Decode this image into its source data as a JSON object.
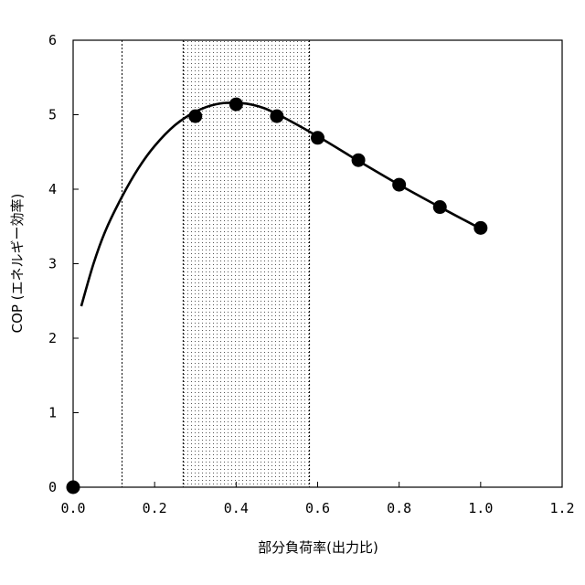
{
  "chart_data": {
    "type": "scatter",
    "title": "",
    "xlabel": "部分負荷率(出力比)",
    "ylabel": "COP (エネルギー効率)",
    "xlim": [
      0.0,
      1.2
    ],
    "ylim": [
      0,
      6
    ],
    "xticks": [
      "0.0",
      "0.2",
      "0.4",
      "0.6",
      "0.8",
      "1.0",
      "1.2"
    ],
    "xtick_values": [
      0.0,
      0.2,
      0.4,
      0.6,
      0.8,
      1.0,
      1.2
    ],
    "yticks": [
      "0",
      "1",
      "2",
      "3",
      "4",
      "5",
      "6"
    ],
    "ytick_values": [
      0,
      1,
      2,
      3,
      4,
      5,
      6
    ],
    "grid": false,
    "points": {
      "x": [
        0.0,
        0.3,
        0.4,
        0.5,
        0.6,
        0.7,
        0.8,
        0.9,
        1.0
      ],
      "y": [
        0.0,
        4.98,
        5.14,
        4.98,
        4.69,
        4.39,
        4.06,
        3.76,
        3.48
      ]
    },
    "fitted_curve": {
      "x": [
        0.02,
        0.05,
        0.08,
        0.12,
        0.16,
        0.2,
        0.25,
        0.3,
        0.35,
        0.4,
        0.45,
        0.5,
        0.6,
        0.7,
        0.8,
        0.9,
        1.0
      ],
      "y": [
        2.43,
        3.0,
        3.45,
        3.9,
        4.28,
        4.58,
        4.86,
        5.04,
        5.14,
        5.16,
        5.12,
        5.01,
        4.71,
        4.38,
        4.06,
        3.76,
        3.47
      ]
    },
    "reference_line_x": 0.12,
    "shaded_band_x": [
      0.27,
      0.58
    ],
    "colors": {
      "marker": "#000000",
      "curve": "#000000",
      "band_dots": "#555555",
      "frame": "#000000"
    }
  }
}
